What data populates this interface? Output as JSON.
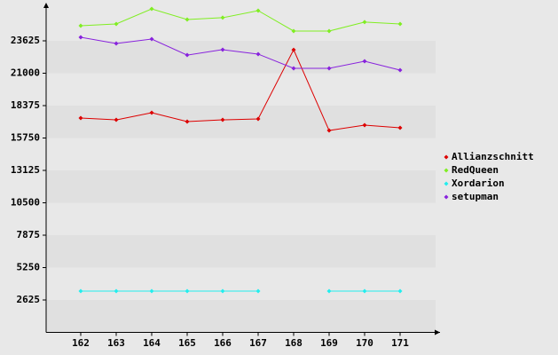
{
  "chart_data": {
    "type": "line",
    "categories": [
      162,
      163,
      164,
      165,
      166,
      167,
      168,
      169,
      170,
      171
    ],
    "ylim": [
      0,
      26250
    ],
    "yticks": [
      2625,
      5250,
      7875,
      10500,
      13125,
      15750,
      18375,
      21000,
      23625
    ],
    "series": [
      {
        "name": "Allianzschnitt",
        "color": "#dd0000",
        "values": [
          17370,
          17220,
          17800,
          17080,
          17220,
          17300,
          22900,
          16360,
          16790,
          16580
        ]
      },
      {
        "name": "RedQueen",
        "color": "#80ee22",
        "values": [
          24850,
          24990,
          26210,
          25350,
          25500,
          26070,
          24420,
          24420,
          25140,
          24990
        ]
      },
      {
        "name": "Xordarion",
        "color": "#22eeee",
        "values": [
          3340,
          3340,
          3340,
          3340,
          3340,
          3340,
          null,
          3340,
          3340,
          3340
        ]
      },
      {
        "name": "setupman",
        "color": "#8822dd",
        "values": [
          23910,
          23410,
          23770,
          22470,
          22910,
          22550,
          21400,
          21400,
          21970,
          21250
        ]
      }
    ]
  }
}
